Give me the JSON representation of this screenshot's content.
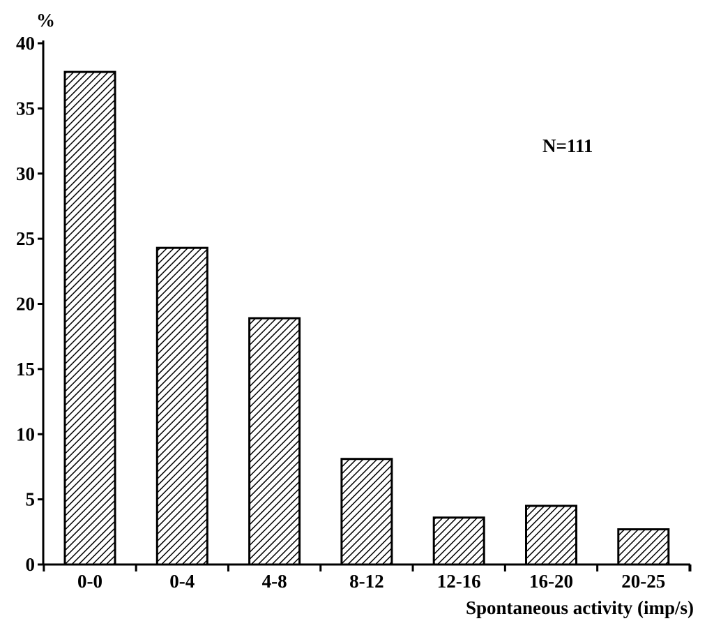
{
  "chart_data": {
    "type": "bar",
    "categories": [
      "0-0",
      "0-4",
      "4-8",
      "8-12",
      "12-16",
      "16-20",
      "20-25"
    ],
    "values": [
      37.8,
      24.3,
      18.9,
      8.1,
      3.6,
      4.5,
      2.7
    ],
    "title": "",
    "xlabel": "Spontaneous activity (imp/s)",
    "ylabel": "%",
    "ylim": [
      0,
      40
    ],
    "yticks": [
      0,
      5,
      10,
      15,
      20,
      25,
      30,
      35,
      40
    ],
    "annotation": "N=111",
    "grid": false,
    "bar_fill": "diagonal-hatch",
    "colors": {
      "bar_stroke": "#000000",
      "hatch": "#000000",
      "background": "#ffffff"
    }
  }
}
